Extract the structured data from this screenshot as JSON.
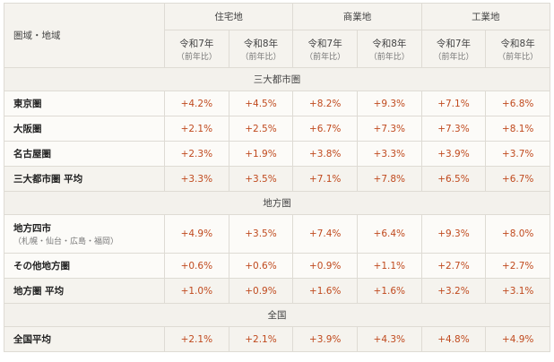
{
  "header": {
    "region_label": "圏域・地域",
    "groups": [
      "住宅地",
      "商業地",
      "工業地"
    ],
    "year7": "令和7年",
    "year8": "令和8年",
    "yoy": "（前年比）"
  },
  "colors": {
    "value": "#c04a1e",
    "header_bg": "#f5f3ee"
  },
  "sections": [
    {
      "title": "三大都市圏",
      "rows": [
        {
          "name": "東京圏",
          "values": [
            "+4.2%",
            "+4.5%",
            "+8.2%",
            "+9.3%",
            "+7.1%",
            "+6.8%"
          ]
        },
        {
          "name": "大阪圏",
          "values": [
            "+2.1%",
            "+2.5%",
            "+6.7%",
            "+7.3%",
            "+7.3%",
            "+8.1%"
          ]
        },
        {
          "name": "名古屋圏",
          "values": [
            "+2.3%",
            "+1.9%",
            "+3.8%",
            "+3.3%",
            "+3.9%",
            "+3.7%"
          ]
        },
        {
          "name": "三大都市圏 平均",
          "values": [
            "+3.3%",
            "+3.5%",
            "+7.1%",
            "+7.8%",
            "+6.5%",
            "+6.7%"
          ]
        }
      ]
    },
    {
      "title": "地方圏",
      "rows": [
        {
          "name": "地方四市",
          "sub": "（札幌・仙台・広島・福岡）",
          "values": [
            "+4.9%",
            "+3.5%",
            "+7.4%",
            "+6.4%",
            "+9.3%",
            "+8.0%"
          ]
        },
        {
          "name": "その他地方圏",
          "values": [
            "+0.6%",
            "+0.6%",
            "+0.9%",
            "+1.1%",
            "+2.7%",
            "+2.7%"
          ]
        },
        {
          "name": "地方圏 平均",
          "values": [
            "+1.0%",
            "+0.9%",
            "+1.6%",
            "+1.6%",
            "+3.2%",
            "+3.1%"
          ]
        }
      ]
    },
    {
      "title": "全国",
      "rows": [
        {
          "name": "全国平均",
          "values": [
            "+2.1%",
            "+2.1%",
            "+3.9%",
            "+4.3%",
            "+4.8%",
            "+4.9%"
          ]
        }
      ]
    }
  ]
}
